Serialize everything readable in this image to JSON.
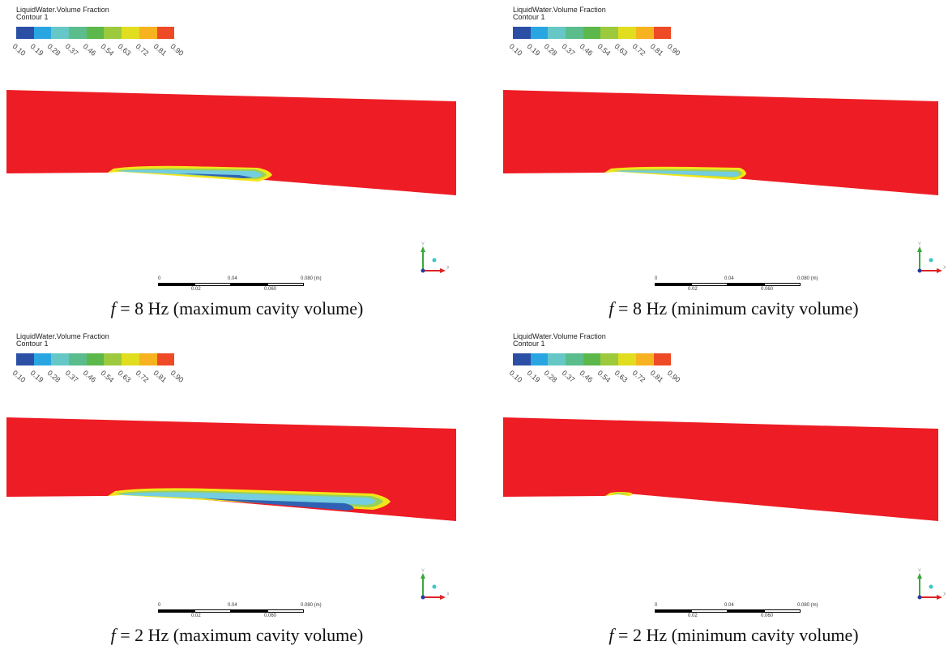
{
  "legend": {
    "title": "LiquidWater.Volume Fraction",
    "subtitle": "Contour 1",
    "colors": [
      "#2b4fa5",
      "#29a6e2",
      "#66c8c6",
      "#5bbd8c",
      "#5cb84b",
      "#9cca3c",
      "#e1dd1f",
      "#f7b21f",
      "#ee4a26"
    ],
    "ticks": [
      "0.10",
      "0.19",
      "0.28",
      "0.37",
      "0.46",
      "0.54",
      "0.63",
      "0.72",
      "0.81",
      "0.90"
    ]
  },
  "scale": {
    "top_labels": [
      "0",
      "0.04",
      "0.080  (m)"
    ],
    "bottom_labels": [
      "0.02",
      "0.060"
    ]
  },
  "axes": {
    "y_label": "Y",
    "x_label": "X"
  },
  "colors": {
    "liquid": "#ee1c24",
    "interface_yellow": "#f2e51a",
    "interface_green": "#98d15a",
    "cavity_cyan": "#74cde0",
    "cavity_blue": "#2f62b4"
  },
  "panels": [
    {
      "caption_f": "f",
      "caption_rest": " = 8 Hz (maximum cavity volume)"
    },
    {
      "caption_f": "f",
      "caption_rest": " = 8 Hz (minimum cavity volume)"
    },
    {
      "caption_f": "f",
      "caption_rest": " = 2 Hz (maximum cavity volume)"
    },
    {
      "caption_f": "f",
      "caption_rest": " = 2 Hz (minimum cavity volume)"
    }
  ]
}
